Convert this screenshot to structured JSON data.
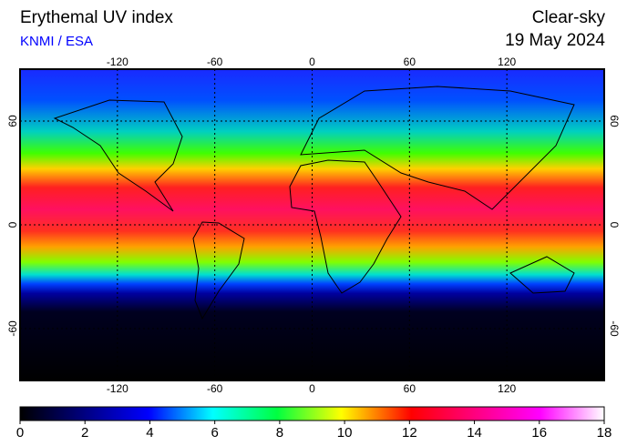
{
  "header": {
    "title": "Erythemal UV index",
    "source": "KNMI / ESA",
    "sky": "Clear-sky",
    "date": "19 May 2024"
  },
  "map": {
    "lonlim": [
      -180,
      180
    ],
    "latlim": [
      -90,
      90
    ],
    "lon_ticks": [
      -120,
      -60,
      0,
      60,
      120
    ],
    "lat_ticks": [
      60,
      0,
      -60
    ]
  },
  "colorbar": {
    "lim": [
      0,
      18
    ],
    "ticks": [
      0,
      2,
      4,
      6,
      8,
      10,
      12,
      14,
      16,
      18
    ]
  }
}
